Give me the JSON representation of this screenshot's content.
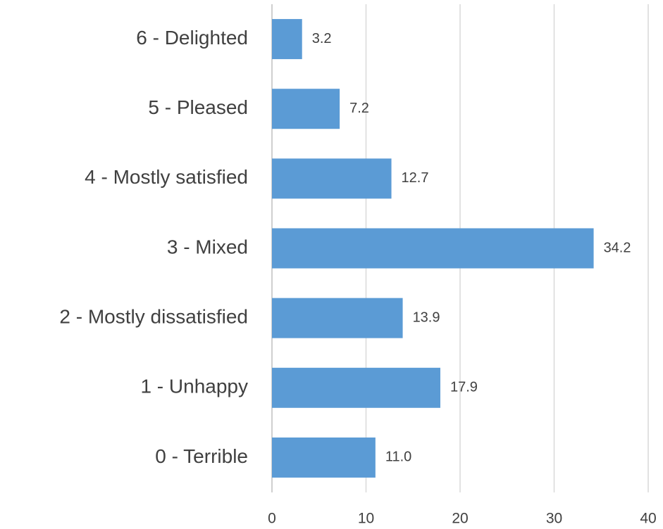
{
  "chart_data": {
    "type": "bar",
    "orientation": "horizontal",
    "categories": [
      "6 - Delighted",
      "5 - Pleased",
      "4 - Mostly satisfied",
      "3 - Mixed",
      "2 - Mostly dissatisfied",
      "1 - Unhappy",
      "0 - Terrible"
    ],
    "values": [
      3.2,
      7.2,
      12.7,
      34.2,
      13.9,
      17.9,
      11.0
    ],
    "value_labels": [
      "3.2",
      "7.2",
      "12.7",
      "34.2",
      "13.9",
      "17.9",
      "11.0"
    ],
    "color": "#5b9bd5",
    "xlim": [
      0,
      40
    ],
    "xticks": [
      0,
      10,
      20,
      30,
      40
    ],
    "grid": true
  }
}
